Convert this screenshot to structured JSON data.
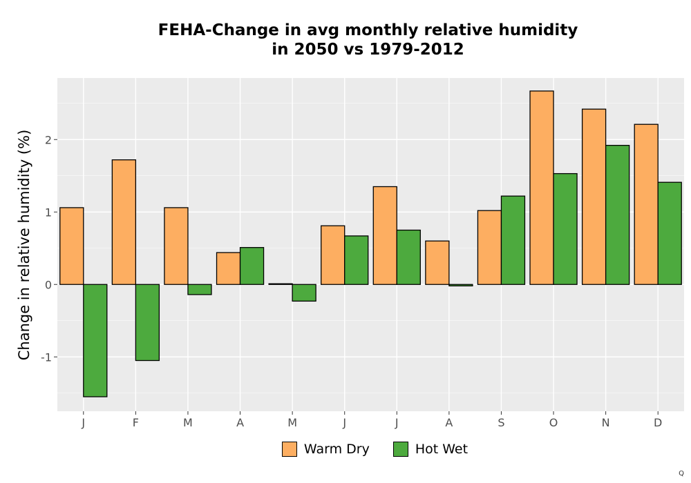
{
  "chart_data": {
    "type": "bar",
    "title": [
      "FEHA-Change in avg monthly relative humidity",
      "in 2050 vs 1979-2012"
    ],
    "xlabel": "",
    "ylabel": "Change in relative humidity (%)",
    "categories": [
      "J",
      "F",
      "M",
      "A",
      "M",
      "J",
      "J",
      "A",
      "S",
      "O",
      "N",
      "D"
    ],
    "series": [
      {
        "name": "Warm Dry",
        "color": "#FDAE61",
        "values": [
          1.06,
          1.72,
          1.06,
          0.44,
          0.01,
          0.81,
          1.35,
          0.6,
          1.02,
          2.67,
          2.42,
          2.21
        ]
      },
      {
        "name": "Hot Wet",
        "color": "#4DAA3E",
        "values": [
          -1.55,
          -1.05,
          -0.14,
          0.51,
          -0.23,
          0.67,
          0.75,
          -0.02,
          1.22,
          1.53,
          1.92,
          1.41
        ]
      }
    ],
    "yticks": [
      -1,
      0,
      1,
      2
    ],
    "ylim": [
      -1.75,
      2.85
    ],
    "grid": true,
    "legend_position": "bottom"
  },
  "corner_mark": "Q"
}
